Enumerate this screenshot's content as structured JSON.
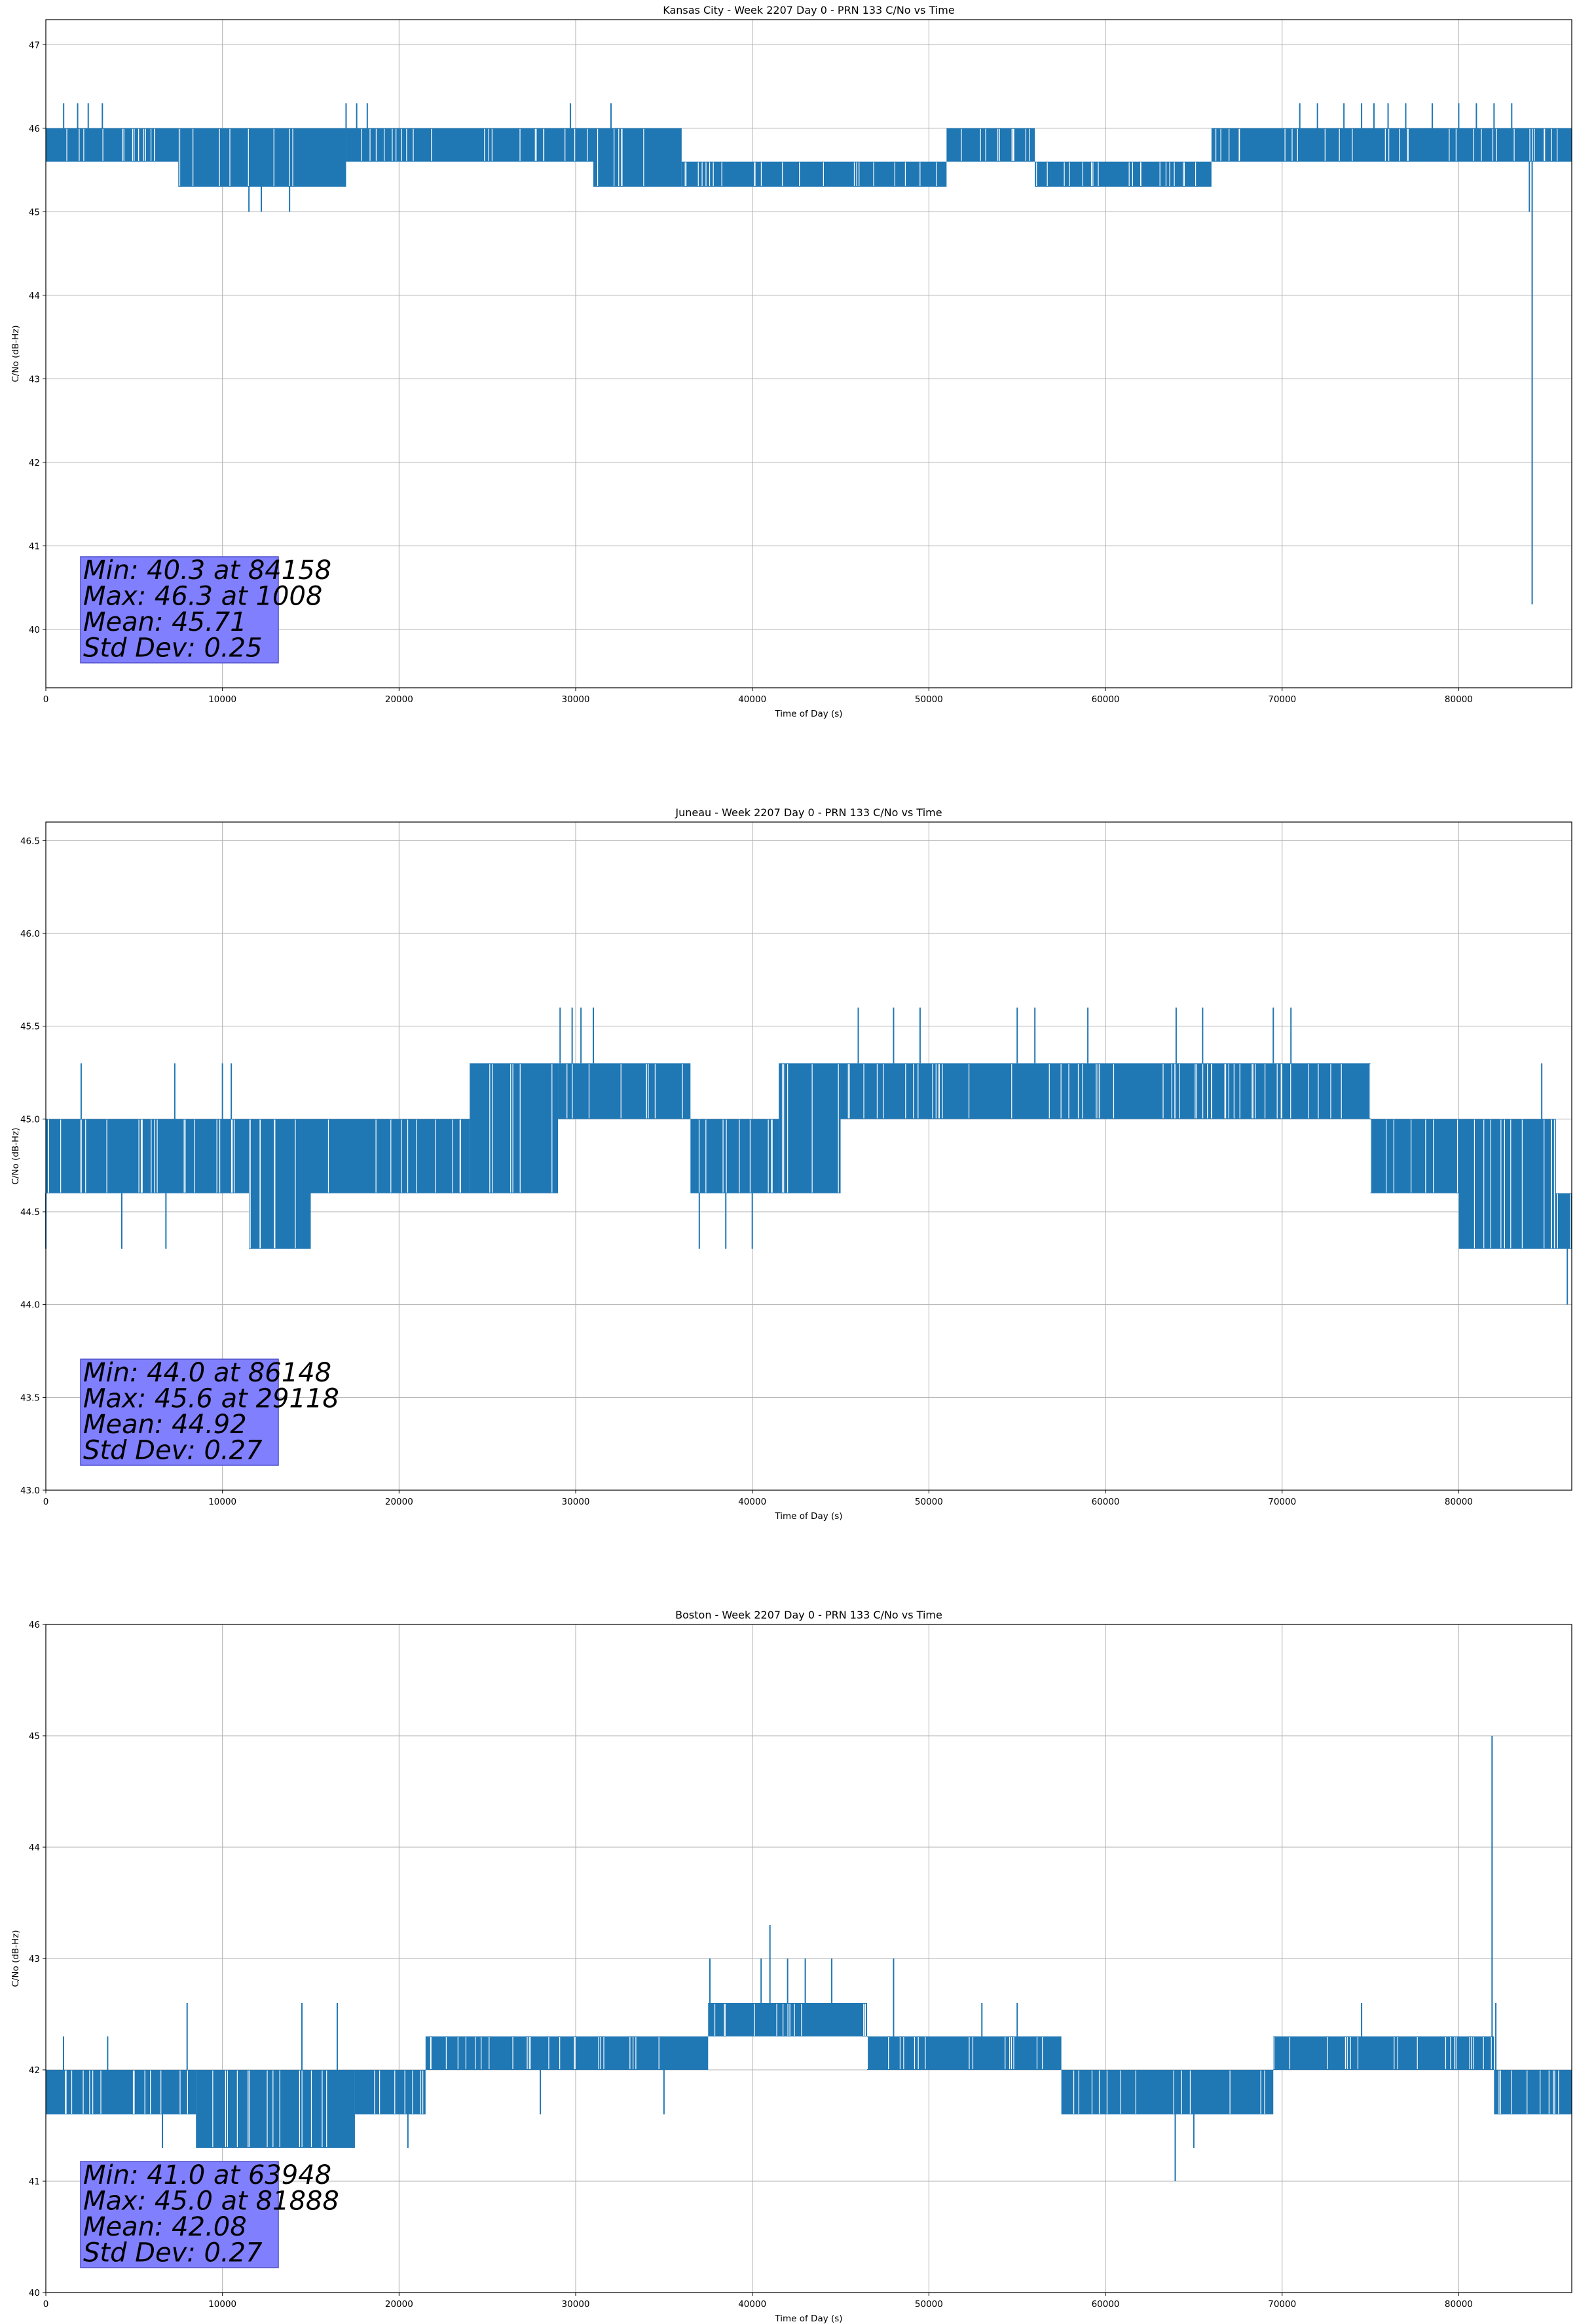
{
  "colors": {
    "line": "#1f77b4",
    "grid": "#b0b0b0",
    "statbox": "#8080ff",
    "statedge": "#4d4dcc"
  },
  "chart_data": [
    {
      "type": "line",
      "title": "Kansas City - Week 2207 Day 0 - PRN 133 C/No vs Time",
      "xlabel": "Time of Day (s)",
      "ylabel": "C/No (dB-Hz)",
      "xlim": [
        0,
        86400
      ],
      "ylim": [
        39.3,
        47.3
      ],
      "xticks": [
        0,
        10000,
        20000,
        30000,
        40000,
        50000,
        60000,
        70000,
        80000
      ],
      "xtick_labels": [
        "0",
        "10000",
        "20000",
        "30000",
        "40000",
        "50000",
        "60000",
        "70000",
        "80000"
      ],
      "yticks": [
        40,
        41,
        42,
        43,
        44,
        45,
        46,
        47
      ],
      "ytick_labels": [
        "40",
        "41",
        "42",
        "43",
        "44",
        "45",
        "46",
        "47"
      ],
      "grid": true,
      "series": [
        {
          "values_description_only_for_envelope": "",
          "segments": [
            {
              "x0": 0,
              "x1": 7500,
              "lo": 45.6,
              "hi": 46.0
            },
            {
              "x0": 7500,
              "x1": 17000,
              "lo": 45.3,
              "hi": 46.0
            },
            {
              "x0": 17000,
              "x1": 31000,
              "lo": 45.6,
              "hi": 46.0
            },
            {
              "x0": 31000,
              "x1": 36000,
              "lo": 45.3,
              "hi": 46.0
            },
            {
              "x0": 36000,
              "x1": 51000,
              "lo": 45.3,
              "hi": 45.6
            },
            {
              "x0": 51000,
              "x1": 56000,
              "lo": 45.6,
              "hi": 46.0
            },
            {
              "x0": 56000,
              "x1": 66000,
              "lo": 45.3,
              "hi": 45.6
            },
            {
              "x0": 66000,
              "x1": 86400,
              "lo": 45.6,
              "hi": 46.0
            }
          ],
          "spikes": [
            {
              "x": 1008,
              "y": 46.3
            },
            {
              "x": 1800,
              "y": 46.3
            },
            {
              "x": 2400,
              "y": 46.3
            },
            {
              "x": 3200,
              "y": 46.3
            },
            {
              "x": 11500,
              "y": 45.0
            },
            {
              "x": 12200,
              "y": 45.0
            },
            {
              "x": 13800,
              "y": 45.0
            },
            {
              "x": 17000,
              "y": 46.3
            },
            {
              "x": 17600,
              "y": 46.3
            },
            {
              "x": 18200,
              "y": 46.3
            },
            {
              "x": 29700,
              "y": 46.3
            },
            {
              "x": 32000,
              "y": 46.3
            },
            {
              "x": 71000,
              "y": 46.3
            },
            {
              "x": 72000,
              "y": 46.3
            },
            {
              "x": 73500,
              "y": 46.3
            },
            {
              "x": 74500,
              "y": 46.3
            },
            {
              "x": 75200,
              "y": 46.3
            },
            {
              "x": 76000,
              "y": 46.3
            },
            {
              "x": 77000,
              "y": 46.3
            },
            {
              "x": 78500,
              "y": 46.3
            },
            {
              "x": 80000,
              "y": 46.3
            },
            {
              "x": 81000,
              "y": 46.3
            },
            {
              "x": 82000,
              "y": 46.3
            },
            {
              "x": 83000,
              "y": 46.3
            },
            {
              "x": 84000,
              "y": 45.0
            },
            {
              "x": 84158,
              "y": 40.3
            }
          ]
        }
      ],
      "stats": [
        "Min: 40.3 at 84158",
        "Max: 46.3 at 1008",
        "Mean: 45.71",
        "Std Dev: 0.25"
      ]
    },
    {
      "type": "line",
      "title": "Juneau - Week 2207 Day 0 - PRN 133 C/No vs Time",
      "xlabel": "Time of Day (s)",
      "ylabel": "C/No (dB-Hz)",
      "xlim": [
        0,
        86400
      ],
      "ylim": [
        43.0,
        46.6
      ],
      "xticks": [
        0,
        10000,
        20000,
        30000,
        40000,
        50000,
        60000,
        70000,
        80000
      ],
      "xtick_labels": [
        "0",
        "10000",
        "20000",
        "30000",
        "40000",
        "50000",
        "60000",
        "70000",
        "80000"
      ],
      "yticks": [
        43.0,
        43.5,
        44.0,
        44.5,
        45.0,
        45.5,
        46.0,
        46.5
      ],
      "ytick_labels": [
        "43.0",
        "43.5",
        "44.0",
        "44.5",
        "45.0",
        "45.5",
        "46.0",
        "46.5"
      ],
      "grid": true,
      "series": [
        {
          "values_description_only_for_envelope": "",
          "segments": [
            {
              "x0": 0,
              "x1": 11500,
              "lo": 44.6,
              "hi": 45.0
            },
            {
              "x0": 11500,
              "x1": 15000,
              "lo": 44.3,
              "hi": 45.0
            },
            {
              "x0": 15000,
              "x1": 24000,
              "lo": 44.6,
              "hi": 45.0
            },
            {
              "x0": 24000,
              "x1": 29000,
              "lo": 44.6,
              "hi": 45.3
            },
            {
              "x0": 29000,
              "x1": 36500,
              "lo": 45.0,
              "hi": 45.3
            },
            {
              "x0": 36500,
              "x1": 41500,
              "lo": 44.6,
              "hi": 45.0
            },
            {
              "x0": 41500,
              "x1": 45000,
              "lo": 44.6,
              "hi": 45.3
            },
            {
              "x0": 45000,
              "x1": 75000,
              "lo": 45.0,
              "hi": 45.3
            },
            {
              "x0": 75000,
              "x1": 80000,
              "lo": 44.6,
              "hi": 45.0
            },
            {
              "x0": 80000,
              "x1": 85500,
              "lo": 44.3,
              "hi": 45.0
            },
            {
              "x0": 85500,
              "x1": 86400,
              "lo": 44.3,
              "hi": 44.6
            }
          ],
          "spikes": [
            {
              "x": 0,
              "y": 44.3
            },
            {
              "x": 2000,
              "y": 45.3
            },
            {
              "x": 4300,
              "y": 44.3
            },
            {
              "x": 6800,
              "y": 44.3
            },
            {
              "x": 7300,
              "y": 45.3
            },
            {
              "x": 10000,
              "y": 45.3
            },
            {
              "x": 10500,
              "y": 45.3
            },
            {
              "x": 29118,
              "y": 45.6
            },
            {
              "x": 29800,
              "y": 45.6
            },
            {
              "x": 30300,
              "y": 45.6
            },
            {
              "x": 31000,
              "y": 45.6
            },
            {
              "x": 37000,
              "y": 44.3
            },
            {
              "x": 38500,
              "y": 44.3
            },
            {
              "x": 40000,
              "y": 44.3
            },
            {
              "x": 46000,
              "y": 45.6
            },
            {
              "x": 48000,
              "y": 45.6
            },
            {
              "x": 49500,
              "y": 45.6
            },
            {
              "x": 55000,
              "y": 45.6
            },
            {
              "x": 56000,
              "y": 45.6
            },
            {
              "x": 59000,
              "y": 45.6
            },
            {
              "x": 64000,
              "y": 45.6
            },
            {
              "x": 65500,
              "y": 45.6
            },
            {
              "x": 69500,
              "y": 45.6
            },
            {
              "x": 70500,
              "y": 45.6
            },
            {
              "x": 84700,
              "y": 45.3
            },
            {
              "x": 86148,
              "y": 44.0
            }
          ]
        }
      ],
      "stats": [
        "Min: 44.0 at 86148",
        "Max: 45.6 at 29118",
        "Mean: 44.92",
        "Std Dev: 0.27"
      ]
    },
    {
      "type": "line",
      "title": "Boston - Week 2207 Day 0 - PRN 133 C/No vs Time",
      "xlabel": "Time of Day (s)",
      "ylabel": "C/No (dB-Hz)",
      "xlim": [
        0,
        86400
      ],
      "ylim": [
        40,
        46
      ],
      "xticks": [
        0,
        10000,
        20000,
        30000,
        40000,
        50000,
        60000,
        70000,
        80000
      ],
      "xtick_labels": [
        "0",
        "10000",
        "20000",
        "30000",
        "40000",
        "50000",
        "60000",
        "70000",
        "80000"
      ],
      "yticks": [
        40,
        41,
        42,
        43,
        44,
        45,
        46
      ],
      "ytick_labels": [
        "40",
        "41",
        "42",
        "43",
        "44",
        "45",
        "46"
      ],
      "grid": true,
      "series": [
        {
          "values_description_only_for_envelope": "",
          "segments": [
            {
              "x0": 0,
              "x1": 8500,
              "lo": 41.6,
              "hi": 42.0
            },
            {
              "x0": 8500,
              "x1": 17500,
              "lo": 41.3,
              "hi": 42.0
            },
            {
              "x0": 17500,
              "x1": 21500,
              "lo": 41.6,
              "hi": 42.0
            },
            {
              "x0": 21500,
              "x1": 37500,
              "lo": 42.0,
              "hi": 42.3
            },
            {
              "x0": 37500,
              "x1": 46500,
              "lo": 42.3,
              "hi": 42.6
            },
            {
              "x0": 46500,
              "x1": 57500,
              "lo": 42.0,
              "hi": 42.3
            },
            {
              "x0": 57500,
              "x1": 69500,
              "lo": 41.6,
              "hi": 42.0
            },
            {
              "x0": 69500,
              "x1": 82000,
              "lo": 42.0,
              "hi": 42.3
            },
            {
              "x0": 82000,
              "x1": 86400,
              "lo": 41.6,
              "hi": 42.0
            }
          ],
          "spikes": [
            {
              "x": 1000,
              "y": 42.3
            },
            {
              "x": 3500,
              "y": 42.3
            },
            {
              "x": 6600,
              "y": 41.3
            },
            {
              "x": 8000,
              "y": 42.6
            },
            {
              "x": 14500,
              "y": 42.6
            },
            {
              "x": 16500,
              "y": 42.6
            },
            {
              "x": 20500,
              "y": 41.3
            },
            {
              "x": 28000,
              "y": 41.6
            },
            {
              "x": 35000,
              "y": 41.6
            },
            {
              "x": 37600,
              "y": 43.0
            },
            {
              "x": 39000,
              "y": 42.6
            },
            {
              "x": 40500,
              "y": 43.0
            },
            {
              "x": 41000,
              "y": 43.3
            },
            {
              "x": 42000,
              "y": 43.0
            },
            {
              "x": 43000,
              "y": 43.0
            },
            {
              "x": 44500,
              "y": 43.0
            },
            {
              "x": 48000,
              "y": 43.0
            },
            {
              "x": 53000,
              "y": 42.6
            },
            {
              "x": 55000,
              "y": 42.6
            },
            {
              "x": 63948,
              "y": 41.0
            },
            {
              "x": 65000,
              "y": 41.3
            },
            {
              "x": 74500,
              "y": 42.6
            },
            {
              "x": 81888,
              "y": 45.0
            },
            {
              "x": 82100,
              "y": 42.6
            }
          ]
        }
      ],
      "stats": [
        "Min: 41.0 at 63948",
        "Max: 45.0 at 81888",
        "Mean: 42.08",
        "Std Dev: 0.27"
      ]
    }
  ]
}
